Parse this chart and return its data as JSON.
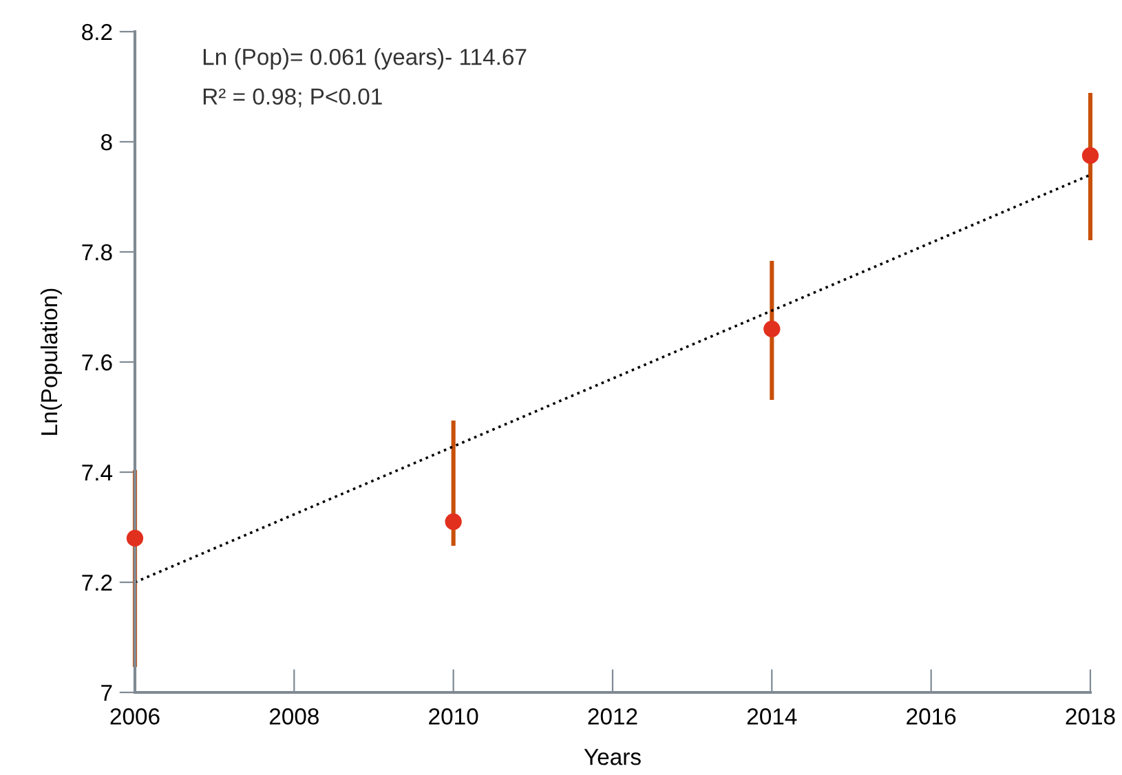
{
  "chart_data": {
    "type": "scatter",
    "xlabel": "Years",
    "ylabel": "Ln(Population)",
    "annotations": [
      "Ln (Pop)= 0.061 (years)- 114.67",
      "R² = 0.98; P<0.01"
    ],
    "series": [
      {
        "color": "#e2301f",
        "marker": "circle",
        "x": [
          2006,
          2010,
          2014,
          2018
        ],
        "values": [
          7.28,
          7.31,
          7.66,
          7.975
        ],
        "errors": [
          [
            7.05,
            7.4
          ],
          [
            7.27,
            7.49
          ],
          [
            7.535,
            7.78
          ],
          [
            7.825,
            8.085
          ]
        ]
      },
      {
        "type": "line",
        "color": "#000000",
        "line_style": "dotted",
        "marker": "none",
        "x": [
          2006,
          2018
        ],
        "values": [
          7.2,
          7.94
        ]
      }
    ],
    "xlim": [
      2006,
      2018
    ],
    "xticks": [
      2006,
      2008,
      2010,
      2012,
      2014,
      2016,
      2018
    ],
    "ylim": [
      7,
      8.2
    ],
    "yticks": [
      7,
      7.2,
      7.4,
      7.6,
      7.8,
      8,
      8.2
    ],
    "grid": false,
    "legend": false
  }
}
